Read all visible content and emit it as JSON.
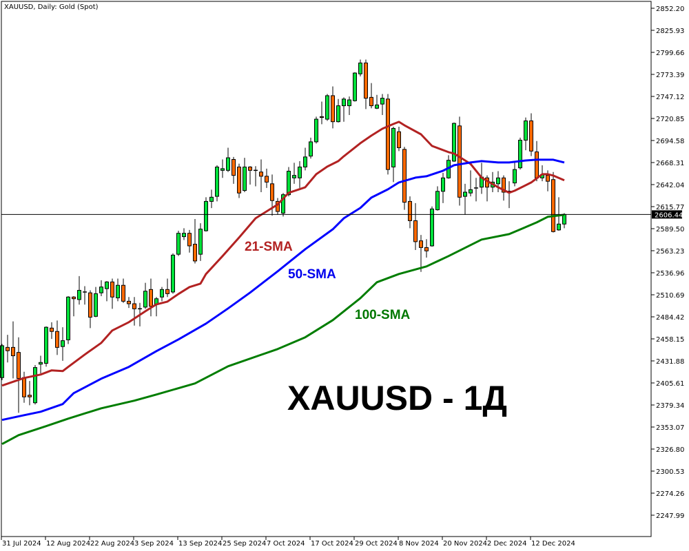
{
  "header": {
    "title": "XAUUSD, Daily:  Gold (Spot)"
  },
  "overlay_title": "XAUUSD - 1Д",
  "colors": {
    "bull": "#00e03a",
    "bear": "#ff6a00",
    "sma21": "#b22222",
    "sma50": "#0000ff",
    "sma100": "#007d00",
    "price_line": "#000000"
  },
  "chart_data": {
    "type": "candlestick",
    "title": "XAUUSD, Daily:  Gold (Spot)",
    "ylim": [
      2230,
      2864
    ],
    "grid": false,
    "y_ticks": [
      "2852.20",
      "2825.93",
      "2799.66",
      "2773.39",
      "2747.12",
      "2720.85",
      "2694.58",
      "2668.31",
      "2642.04",
      "2615.77",
      "2589.50",
      "2563.23",
      "2536.96",
      "2510.69",
      "2484.42",
      "2458.15",
      "2431.88",
      "2405.61",
      "2379.34",
      "2353.07",
      "2326.80",
      "2300.53",
      "2274.26",
      "2247.99"
    ],
    "x_labels": [
      {
        "bar": 0,
        "label": "31 Jul 2024"
      },
      {
        "bar": 8,
        "label": "12 Aug 2024"
      },
      {
        "bar": 16,
        "label": "22 Aug 2024"
      },
      {
        "bar": 24,
        "label": "3 Sep 2024"
      },
      {
        "bar": 32,
        "label": "13 Sep 2024"
      },
      {
        "bar": 40,
        "label": "25 Sep 2024"
      },
      {
        "bar": 48,
        "label": "7 Oct 2024"
      },
      {
        "bar": 56,
        "label": "17 Oct 2024"
      },
      {
        "bar": 64,
        "label": "29 Oct 2024"
      },
      {
        "bar": 72,
        "label": "8 Nov 2024"
      },
      {
        "bar": 80,
        "label": "20 Nov 2024"
      },
      {
        "bar": 88,
        "label": "2 Dec 2024"
      },
      {
        "bar": 96,
        "label": "12 Dec 2024"
      }
    ],
    "last_price": "2606.44",
    "ohlc_order": [
      "open",
      "high",
      "low",
      "close"
    ],
    "candles": [
      [
        2412,
        2452,
        2409,
        2450
      ],
      [
        2448,
        2463,
        2430,
        2444
      ],
      [
        2448,
        2479,
        2411,
        2438
      ],
      [
        2442,
        2460,
        2370,
        2411
      ],
      [
        2412,
        2419,
        2382,
        2389
      ],
      [
        2391,
        2408,
        2379,
        2389
      ],
      [
        2382,
        2427,
        2380,
        2424
      ],
      [
        2428,
        2438,
        2417,
        2430
      ],
      [
        2429,
        2473,
        2425,
        2472
      ],
      [
        2471,
        2478,
        2458,
        2467
      ],
      [
        2467,
        2480,
        2439,
        2448
      ],
      [
        2449,
        2472,
        2432,
        2456
      ],
      [
        2457,
        2509,
        2452,
        2508
      ],
      [
        2508,
        2509,
        2485,
        2506
      ],
      [
        2505,
        2533,
        2499,
        2516
      ],
      [
        2514,
        2521,
        2499,
        2514
      ],
      [
        2513,
        2516,
        2471,
        2484
      ],
      [
        2485,
        2520,
        2484,
        2512
      ],
      [
        2513,
        2528,
        2509,
        2520
      ],
      [
        2518,
        2527,
        2503,
        2526
      ],
      [
        2526,
        2530,
        2494,
        2508
      ],
      [
        2507,
        2530,
        2503,
        2522
      ],
      [
        2522,
        2530,
        2501,
        2503
      ],
      [
        2503,
        2508,
        2495,
        2500
      ],
      [
        2500,
        2508,
        2474,
        2494
      ],
      [
        2494,
        2501,
        2473,
        2494
      ],
      [
        2496,
        2525,
        2494,
        2515
      ],
      [
        2517,
        2530,
        2485,
        2497
      ],
      [
        2499,
        2508,
        2485,
        2506
      ],
      [
        2508,
        2520,
        2503,
        2517
      ],
      [
        2517,
        2530,
        2508,
        2512
      ],
      [
        2514,
        2560,
        2512,
        2558
      ],
      [
        2559,
        2587,
        2557,
        2584
      ],
      [
        2580,
        2590,
        2576,
        2584
      ],
      [
        2584,
        2588,
        2561,
        2569
      ],
      [
        2571,
        2601,
        2548,
        2551
      ],
      [
        2559,
        2596,
        2551,
        2589
      ],
      [
        2587,
        2627,
        2586,
        2622
      ],
      [
        2622,
        2636,
        2614,
        2627
      ],
      [
        2628,
        2665,
        2622,
        2663
      ],
      [
        2659,
        2672,
        2650,
        2661
      ],
      [
        2659,
        2686,
        2657,
        2674
      ],
      [
        2672,
        2675,
        2643,
        2653
      ],
      [
        2663,
        2667,
        2626,
        2632
      ],
      [
        2635,
        2674,
        2633,
        2663
      ],
      [
        2663,
        2664,
        2642,
        2659
      ],
      [
        2659,
        2664,
        2640,
        2659
      ],
      [
        2657,
        2672,
        2633,
        2652
      ],
      [
        2652,
        2661,
        2638,
        2645
      ],
      [
        2643,
        2654,
        2605,
        2623
      ],
      [
        2622,
        2626,
        2606,
        2610
      ],
      [
        2608,
        2632,
        2604,
        2630
      ],
      [
        2630,
        2663,
        2628,
        2658
      ],
      [
        2650,
        2668,
        2643,
        2653
      ],
      [
        2650,
        2670,
        2638,
        2663
      ],
      [
        2663,
        2686,
        2659,
        2675
      ],
      [
        2676,
        2698,
        2673,
        2693
      ],
      [
        2693,
        2723,
        2691,
        2720
      ],
      [
        2723,
        2741,
        2714,
        2722
      ],
      [
        2720,
        2750,
        2718,
        2748
      ],
      [
        2748,
        2759,
        2709,
        2717
      ],
      [
        2717,
        2744,
        2716,
        2736
      ],
      [
        2736,
        2746,
        2717,
        2744
      ],
      [
        2736,
        2747,
        2725,
        2743
      ],
      [
        2742,
        2776,
        2741,
        2775
      ],
      [
        2774,
        2791,
        2771,
        2787
      ],
      [
        2787,
        2791,
        2732,
        2745
      ],
      [
        2746,
        2763,
        2733,
        2736
      ],
      [
        2733,
        2749,
        2732,
        2737
      ],
      [
        2738,
        2750,
        2725,
        2745
      ],
      [
        2744,
        2750,
        2654,
        2660
      ],
      [
        2663,
        2711,
        2645,
        2709
      ],
      [
        2705,
        2711,
        2682,
        2686
      ],
      [
        2684,
        2687,
        2612,
        2621
      ],
      [
        2622,
        2628,
        2590,
        2599
      ],
      [
        2599,
        2620,
        2564,
        2574
      ],
      [
        2575,
        2582,
        2538,
        2567
      ],
      [
        2567,
        2577,
        2555,
        2563
      ],
      [
        2569,
        2616,
        2568,
        2613
      ],
      [
        2612,
        2640,
        2611,
        2634
      ],
      [
        2634,
        2656,
        2620,
        2650
      ],
      [
        2650,
        2677,
        2649,
        2671
      ],
      [
        2670,
        2716,
        2669,
        2715
      ],
      [
        2712,
        2723,
        2617,
        2627
      ],
      [
        2628,
        2643,
        2606,
        2633
      ],
      [
        2632,
        2659,
        2628,
        2636
      ],
      [
        2638,
        2650,
        2622,
        2638
      ],
      [
        2639,
        2668,
        2631,
        2651
      ],
      [
        2650,
        2653,
        2622,
        2639
      ],
      [
        2639,
        2657,
        2633,
        2645
      ],
      [
        2643,
        2658,
        2633,
        2650
      ],
      [
        2650,
        2653,
        2623,
        2633
      ],
      [
        2634,
        2646,
        2614,
        2634
      ],
      [
        2644,
        2669,
        2640,
        2660
      ],
      [
        2662,
        2698,
        2660,
        2695
      ],
      [
        2695,
        2722,
        2683,
        2718
      ],
      [
        2718,
        2727,
        2676,
        2682
      ],
      [
        2681,
        2694,
        2646,
        2650
      ],
      [
        2650,
        2665,
        2646,
        2654
      ],
      [
        2653,
        2659,
        2634,
        2646
      ],
      [
        2648,
        2657,
        2585,
        2586
      ],
      [
        2588,
        2627,
        2587,
        2595
      ],
      [
        2595,
        2608,
        2590,
        2606.44
      ]
    ],
    "series": [
      {
        "name": "21-SMA",
        "color": "#b22222",
        "points": [
          [
            0,
            2402.5
          ],
          [
            4,
            2411.5
          ],
          [
            7,
            2415.6
          ],
          [
            9,
            2420.6
          ],
          [
            11,
            2419.7
          ],
          [
            12,
            2424.7
          ],
          [
            15,
            2439.4
          ],
          [
            18,
            2453.4
          ],
          [
            20,
            2468.2
          ],
          [
            23,
            2478.0
          ],
          [
            26,
            2491.1
          ],
          [
            28,
            2499.3
          ],
          [
            30,
            2502.6
          ],
          [
            32,
            2511.7
          ],
          [
            34,
            2519.9
          ],
          [
            36,
            2524.0
          ],
          [
            37,
            2535.5
          ],
          [
            40,
            2556.8
          ],
          [
            43,
            2578.9
          ],
          [
            46,
            2601.9
          ],
          [
            50,
            2618.3
          ],
          [
            52,
            2632.3
          ],
          [
            55,
            2638.8
          ],
          [
            57,
            2654.4
          ],
          [
            59,
            2663.5
          ],
          [
            61,
            2670.0
          ],
          [
            62,
            2675.8
          ],
          [
            65,
            2691.4
          ],
          [
            67,
            2700.4
          ],
          [
            69,
            2708.6
          ],
          [
            71,
            2714.3
          ],
          [
            72,
            2716.8
          ],
          [
            73,
            2712.7
          ],
          [
            76,
            2702.0
          ],
          [
            78,
            2688.1
          ],
          [
            81,
            2680.7
          ],
          [
            82,
            2679.1
          ],
          [
            85,
            2666.7
          ],
          [
            87,
            2650.3
          ],
          [
            90,
            2638.8
          ],
          [
            92,
            2632.3
          ],
          [
            93,
            2634.7
          ],
          [
            96,
            2644.6
          ],
          [
            98,
            2654.4
          ],
          [
            99,
            2654.4
          ],
          [
            100,
            2652.8
          ],
          [
            102,
            2647.1
          ]
        ]
      },
      {
        "name": "50-SMA",
        "color": "#0000ff",
        "points": [
          [
            0,
            2361.5
          ],
          [
            4,
            2367.2
          ],
          [
            7,
            2371.3
          ],
          [
            11,
            2380.4
          ],
          [
            13,
            2393.5
          ],
          [
            18,
            2410.7
          ],
          [
            23,
            2424.7
          ],
          [
            28,
            2443.5
          ],
          [
            32,
            2457.5
          ],
          [
            37,
            2476.4
          ],
          [
            41,
            2494.4
          ],
          [
            45,
            2513.3
          ],
          [
            50,
            2538.7
          ],
          [
            55,
            2565.0
          ],
          [
            60,
            2588.8
          ],
          [
            62,
            2601.9
          ],
          [
            65,
            2614.2
          ],
          [
            67,
            2626.5
          ],
          [
            70,
            2636.4
          ],
          [
            72,
            2644.6
          ],
          [
            75,
            2650.3
          ],
          [
            77,
            2652.0
          ],
          [
            80,
            2658.5
          ],
          [
            82,
            2665.1
          ],
          [
            85,
            2668.4
          ],
          [
            87,
            2670.0
          ],
          [
            90,
            2668.4
          ],
          [
            92,
            2668.4
          ],
          [
            95,
            2670.8
          ],
          [
            97,
            2671.7
          ],
          [
            100,
            2671.7
          ],
          [
            102,
            2668.4
          ]
        ]
      },
      {
        "name": "100-SMA",
        "color": "#007d00",
        "points": [
          [
            0,
            2332.8
          ],
          [
            3,
            2343.4
          ],
          [
            8,
            2354.1
          ],
          [
            12,
            2363.1
          ],
          [
            18,
            2375.4
          ],
          [
            24,
            2384.5
          ],
          [
            28,
            2391.8
          ],
          [
            35,
            2405.0
          ],
          [
            41,
            2425.5
          ],
          [
            50,
            2446.0
          ],
          [
            55,
            2460.0
          ],
          [
            60,
            2480.5
          ],
          [
            65,
            2506.7
          ],
          [
            68,
            2525.6
          ],
          [
            72,
            2535.5
          ],
          [
            77,
            2544.5
          ],
          [
            81,
            2556.8
          ],
          [
            87,
            2576.5
          ],
          [
            92,
            2583.0
          ],
          [
            97,
            2597.0
          ],
          [
            99,
            2603.6
          ],
          [
            102,
            2606.0
          ]
        ]
      }
    ]
  }
}
